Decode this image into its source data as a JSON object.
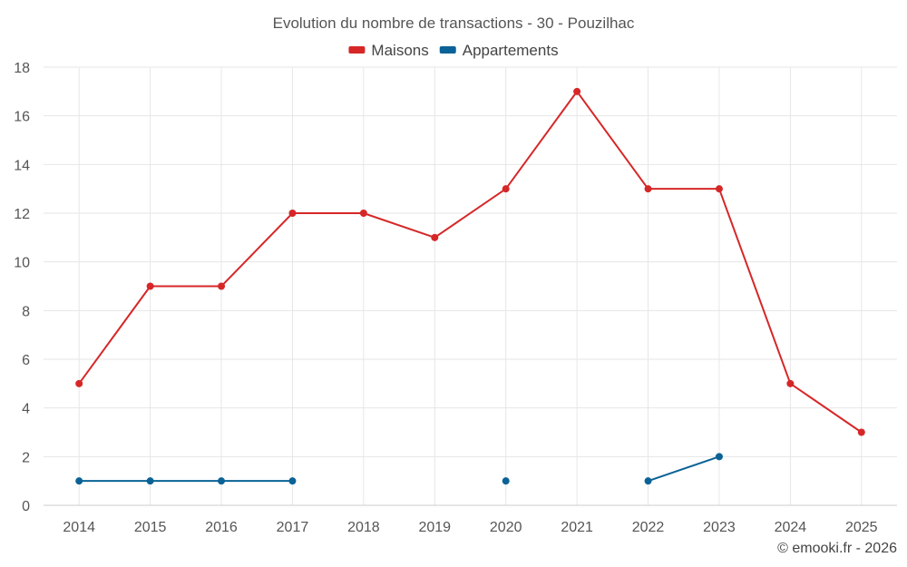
{
  "chart_data": {
    "type": "line",
    "title": "Evolution du nombre de transactions - 30 - Pouzilhac",
    "categories": [
      "2014",
      "2015",
      "2016",
      "2017",
      "2018",
      "2019",
      "2020",
      "2021",
      "2022",
      "2023",
      "2024",
      "2025"
    ],
    "ylim": [
      0,
      18
    ],
    "yticks": [
      0,
      2,
      4,
      6,
      8,
      10,
      12,
      14,
      16,
      18
    ],
    "grid": true,
    "legend": "top-center",
    "series": [
      {
        "name": "Maisons",
        "color": "#d62728",
        "values": [
          5,
          9,
          9,
          12,
          12,
          11,
          13,
          17,
          13,
          13,
          5,
          3
        ]
      },
      {
        "name": "Appartements",
        "color": "#0a6296",
        "values": [
          1,
          1,
          1,
          1,
          null,
          null,
          1,
          null,
          1,
          2,
          null,
          null
        ]
      }
    ]
  },
  "footer": {
    "credit": "© emooki.fr - 2026"
  }
}
